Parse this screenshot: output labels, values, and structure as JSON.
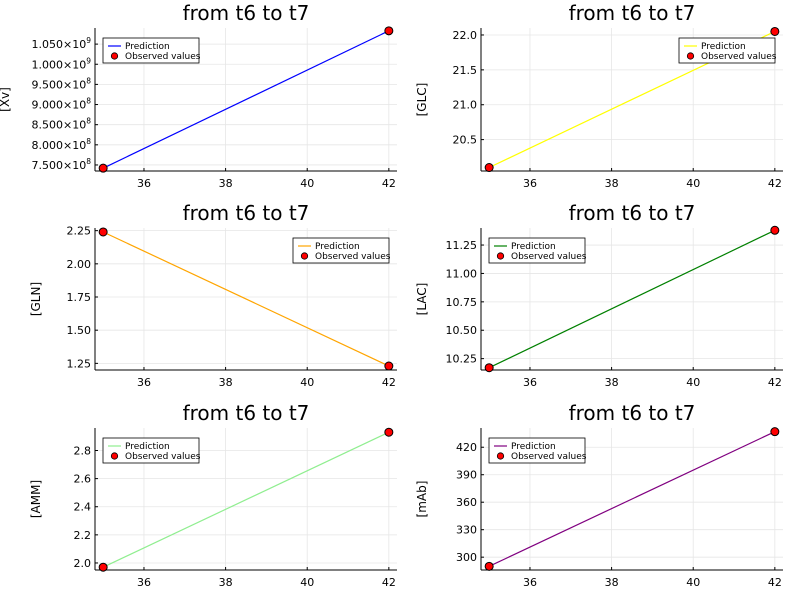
{
  "chart_data": [
    {
      "type": "line",
      "title": "from t6 to t7",
      "ylabel": "[Xv]",
      "xlabel": "",
      "x": [
        35,
        42
      ],
      "xticks": [
        36,
        38,
        40,
        42
      ],
      "xlim": [
        34.8,
        42.2
      ],
      "ylim": [
        735000000,
        1090000000
      ],
      "yticks": [
        750000000,
        800000000,
        850000000,
        900000000,
        950000000,
        1000000000,
        1050000000
      ],
      "ytick_labels": [
        {
          "mantissa": "7.500×10",
          "exp": "8"
        },
        {
          "mantissa": "8.000×10",
          "exp": "8"
        },
        {
          "mantissa": "8.500×10",
          "exp": "8"
        },
        {
          "mantissa": "9.000×10",
          "exp": "8"
        },
        {
          "mantissa": "9.500×10",
          "exp": "8"
        },
        {
          "mantissa": "1.000×10",
          "exp": "9"
        },
        {
          "mantissa": "1.050×10",
          "exp": "9"
        }
      ],
      "grid": true,
      "legend_position": "top-left",
      "series": [
        {
          "name": "Prediction",
          "kind": "line",
          "color": "#0000ff",
          "values": [
            742000000,
            1083000000
          ]
        },
        {
          "name": "Observed values",
          "kind": "scatter",
          "color": "#ff0000",
          "values": [
            742000000,
            1083000000
          ]
        }
      ]
    },
    {
      "type": "line",
      "title": "from t6 to t7",
      "ylabel": "[GLC]",
      "xlabel": "",
      "x": [
        35,
        42
      ],
      "xticks": [
        36,
        38,
        40,
        42
      ],
      "xlim": [
        34.8,
        42.2
      ],
      "ylim": [
        20.05,
        22.1
      ],
      "yticks": [
        20.5,
        21.0,
        21.5,
        22.0
      ],
      "ytick_labels": [
        "20.5",
        "21.0",
        "21.5",
        "22.0"
      ],
      "grid": true,
      "legend_position": "top-right",
      "series": [
        {
          "name": "Prediction",
          "kind": "line",
          "color": "#ffff00",
          "values": [
            20.1,
            22.05
          ]
        },
        {
          "name": "Observed values",
          "kind": "scatter",
          "color": "#ff0000",
          "values": [
            20.1,
            22.05
          ]
        }
      ]
    },
    {
      "type": "line",
      "title": "from t6 to t7",
      "ylabel": "[GLN]",
      "xlabel": "",
      "x": [
        35,
        42
      ],
      "xticks": [
        36,
        38,
        40,
        42
      ],
      "xlim": [
        34.8,
        42.2
      ],
      "ylim": [
        1.2,
        2.27
      ],
      "yticks": [
        1.25,
        1.5,
        1.75,
        2.0,
        2.25
      ],
      "ytick_labels": [
        "1.25",
        "1.50",
        "1.75",
        "2.00",
        "2.25"
      ],
      "grid": true,
      "legend_position": "top-right",
      "series": [
        {
          "name": "Prediction",
          "kind": "line",
          "color": "#ffa500",
          "values": [
            2.24,
            1.23
          ]
        },
        {
          "name": "Observed values",
          "kind": "scatter",
          "color": "#ff0000",
          "values": [
            2.24,
            1.23
          ]
        }
      ]
    },
    {
      "type": "line",
      "title": "from t6 to t7",
      "ylabel": "[LAC]",
      "xlabel": "",
      "x": [
        35,
        42
      ],
      "xticks": [
        36,
        38,
        40,
        42
      ],
      "xlim": [
        34.8,
        42.2
      ],
      "ylim": [
        10.15,
        11.4
      ],
      "yticks": [
        10.25,
        10.5,
        10.75,
        11.0,
        11.25
      ],
      "ytick_labels": [
        "10.25",
        "10.50",
        "10.75",
        "11.00",
        "11.25"
      ],
      "grid": true,
      "legend_position": "top-left",
      "series": [
        {
          "name": "Prediction",
          "kind": "line",
          "color": "#008000",
          "values": [
            10.17,
            11.38
          ]
        },
        {
          "name": "Observed values",
          "kind": "scatter",
          "color": "#ff0000",
          "values": [
            10.17,
            11.38
          ]
        }
      ]
    },
    {
      "type": "line",
      "title": "from t6 to t7",
      "ylabel": "[AMM]",
      "xlabel": "",
      "x": [
        35,
        42
      ],
      "xticks": [
        36,
        38,
        40,
        42
      ],
      "xlim": [
        34.8,
        42.2
      ],
      "ylim": [
        1.95,
        2.96
      ],
      "yticks": [
        2.0,
        2.2,
        2.4,
        2.6,
        2.8
      ],
      "ytick_labels": [
        "2.0",
        "2.2",
        "2.4",
        "2.6",
        "2.8"
      ],
      "grid": true,
      "legend_position": "top-left",
      "series": [
        {
          "name": "Prediction",
          "kind": "line",
          "color": "#90ee90",
          "values": [
            1.97,
            2.93
          ]
        },
        {
          "name": "Observed values",
          "kind": "scatter",
          "color": "#ff0000",
          "values": [
            1.97,
            2.93
          ]
        }
      ]
    },
    {
      "type": "line",
      "title": "from t6 to t7",
      "ylabel": "[mAb]",
      "xlabel": "",
      "x": [
        35,
        42
      ],
      "xticks": [
        36,
        38,
        40,
        42
      ],
      "xlim": [
        34.8,
        42.2
      ],
      "ylim": [
        286,
        441
      ],
      "yticks": [
        300,
        330,
        360,
        390,
        420
      ],
      "ytick_labels": [
        "300",
        "330",
        "360",
        "390",
        "420"
      ],
      "grid": true,
      "legend_position": "top-left",
      "series": [
        {
          "name": "Prediction",
          "kind": "line",
          "color": "#800080",
          "values": [
            290,
            437
          ]
        },
        {
          "name": "Observed values",
          "kind": "scatter",
          "color": "#ff0000",
          "values": [
            290,
            437
          ]
        }
      ]
    }
  ]
}
